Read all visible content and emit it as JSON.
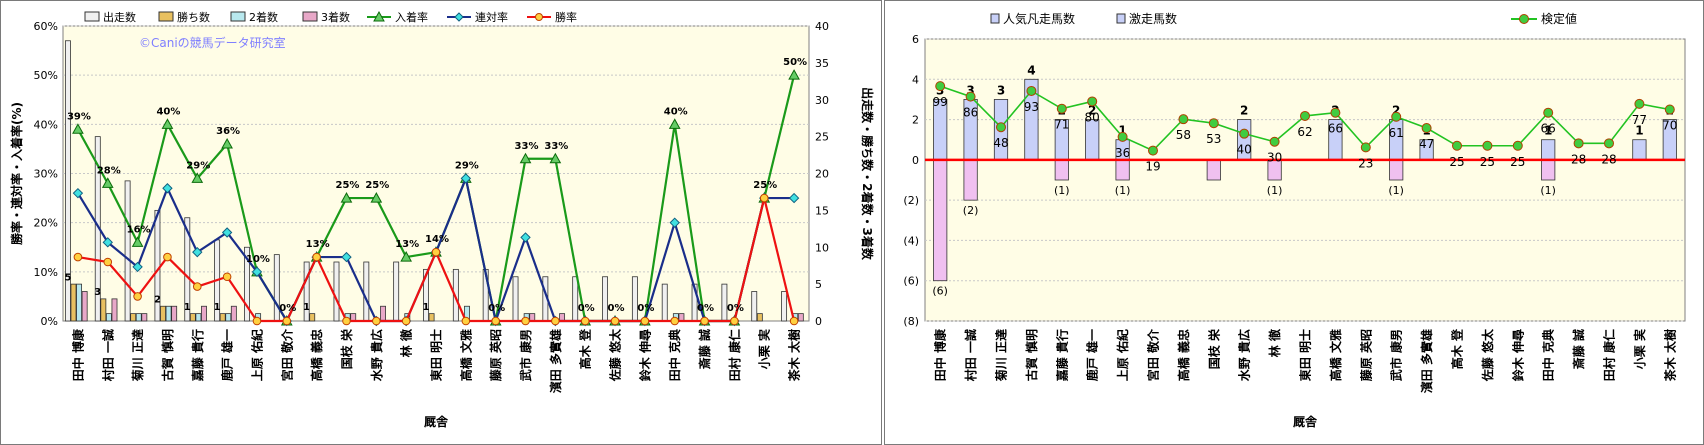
{
  "chart_data": [
    {
      "type": "bar",
      "xlabel": "厩舎",
      "ylabel": "勝率・連対率・入着率(%)",
      "y2label": "出走数・勝ち数・2着数・3着数",
      "ylim": [
        0,
        60
      ],
      "y2lim": [
        0,
        40
      ],
      "yticks": [
        "0%",
        "10%",
        "20%",
        "30%",
        "40%",
        "50%",
        "60%"
      ],
      "y2ticks": [
        "0",
        "5",
        "10",
        "15",
        "20",
        "25",
        "30",
        "35",
        "40"
      ],
      "watermark": "©Caniの競馬データ研究室",
      "legend_position": "top",
      "colors": {
        "starts": "#f0f0f0",
        "wins": "#e8c060",
        "second": "#b8e8ee",
        "third": "#e8a8c8",
        "place_rate": "#1a9a1a",
        "quinella_rate": "#1a2e8a",
        "win_rate": "#ee1111",
        "plot_bg": "#fffde6"
      },
      "categories": [
        "田中 博康",
        "村田 一誠",
        "菊川 正達",
        "古賀 慎明",
        "嘉藤 貴行",
        "鹿戸 雄一",
        "上原 佑紀",
        "宮田 敬介",
        "高橋 義忠",
        "国枝 栄",
        "水野 貴広",
        "林 徹",
        "東田 明士",
        "高橋 文雅",
        "藤原 英昭",
        "武市 康男",
        "濱田 多實雄",
        "高木 登",
        "佐藤 悠太",
        "鈴木 伸尋",
        "田中 克典",
        "斎藤 誠",
        "田村 康仁",
        "小栗 実",
        "茶木 太樹"
      ],
      "series": [
        {
          "name": "出走数",
          "kind": "bar",
          "axis": "right",
          "values": [
            38,
            25,
            19,
            15,
            14,
            11,
            10,
            9,
            8,
            8,
            8,
            8,
            7,
            7,
            7,
            6,
            6,
            6,
            6,
            6,
            5,
            5,
            5,
            4,
            4
          ]
        },
        {
          "name": "勝ち数",
          "kind": "bar",
          "axis": "right",
          "values": [
            5,
            3,
            1,
            2,
            1,
            1,
            0,
            0,
            1,
            0,
            0,
            0,
            1,
            0,
            0,
            0,
            0,
            0,
            0,
            0,
            0,
            0,
            0,
            1,
            0
          ]
        },
        {
          "name": "2着数",
          "kind": "bar",
          "axis": "right",
          "values": [
            5,
            1,
            1,
            2,
            1,
            1,
            1,
            0,
            0,
            1,
            0,
            1,
            0,
            2,
            0,
            1,
            0,
            0,
            0,
            0,
            1,
            0,
            0,
            0,
            1
          ]
        },
        {
          "name": "3着数",
          "kind": "bar",
          "axis": "right",
          "values": [
            4,
            3,
            1,
            2,
            2,
            2,
            0,
            0,
            0,
            1,
            2,
            0,
            0,
            0,
            0,
            1,
            1,
            0,
            0,
            0,
            1,
            0,
            0,
            0,
            1
          ]
        },
        {
          "name": "入着率",
          "kind": "line",
          "axis": "left",
          "values": [
            39,
            28,
            16,
            40,
            29,
            36,
            10,
            0,
            13,
            25,
            25,
            13,
            14,
            29,
            0,
            33,
            33,
            0,
            0,
            0,
            40,
            0,
            0,
            25,
            50
          ]
        },
        {
          "name": "連対率",
          "kind": "line",
          "axis": "left",
          "values": [
            26,
            16,
            11,
            27,
            14,
            18,
            10,
            0,
            13,
            13,
            0,
            0,
            14,
            29,
            0,
            17,
            0,
            0,
            0,
            0,
            20,
            0,
            0,
            25,
            25
          ]
        },
        {
          "name": "勝率",
          "kind": "line",
          "axis": "left",
          "values": [
            13,
            12,
            5,
            13,
            7,
            9,
            0,
            0,
            13,
            0,
            0,
            0,
            14,
            0,
            0,
            0,
            0,
            0,
            0,
            0,
            0,
            0,
            0,
            25,
            0
          ]
        }
      ],
      "data_labels": {
        "place_rate": [
          "39%",
          "28%",
          "16%",
          "40%",
          "29%",
          "36%",
          "10%",
          "0%",
          "13%",
          "25%",
          "25%",
          "13%",
          "14%",
          "29%",
          "0%",
          "33%",
          "33%",
          "0%",
          "0%",
          "0%",
          "40%",
          "0%",
          "0%",
          "25%",
          "50%"
        ],
        "wins": [
          "5",
          "3",
          "",
          "2",
          "1",
          "1",
          "",
          "",
          "1",
          "",
          "",
          "",
          "1",
          "",
          "",
          "",
          "",
          "",
          "",
          "",
          "",
          "",
          "",
          "",
          ""
        ]
      }
    },
    {
      "type": "bar",
      "xlabel": "厩舎",
      "ylim": [
        -8,
        6
      ],
      "yticks": [
        "(8)",
        "(6)",
        "(4)",
        "(2)",
        "0",
        "2",
        "4",
        "6"
      ],
      "legend_position": "top",
      "colors": {
        "pos_bar": "#c8d0f8",
        "neg_bar": "#f0c0f0",
        "line": "#22c322",
        "zero": "#ff0000",
        "plot_bg": "#fffde6",
        "value_label": "#228888",
        "neg_label": "#cc0000"
      },
      "categories": [
        "田中 博康",
        "村田 一誠",
        "菊川 正達",
        "古賀 慎明",
        "嘉藤 貴行",
        "鹿戸 雄一",
        "上原 佑紀",
        "宮田 敬介",
        "高橋 義忠",
        "国枝 栄",
        "水野 貴広",
        "林 徹",
        "東田 明士",
        "高橋 文雅",
        "藤原 英昭",
        "武市 康男",
        "濱田 多實雄",
        "高木 登",
        "佐藤 悠太",
        "鈴木 伸尋",
        "田中 克典",
        "斎藤 誠",
        "田村 康仁",
        "小栗 実",
        "茶木 太樹"
      ],
      "series": [
        {
          "name": "人気凡走馬数",
          "kind": "bar",
          "values": [
            -6,
            -2,
            0,
            0,
            -1,
            0,
            -1,
            0,
            0,
            -1,
            0,
            -1,
            0,
            0,
            0,
            -1,
            0,
            0,
            0,
            0,
            -1,
            0,
            0,
            0,
            0
          ]
        },
        {
          "name": "激走馬数",
          "kind": "bar",
          "values": [
            3,
            3,
            3,
            4,
            2,
            2,
            1,
            0,
            0,
            0,
            2,
            0,
            0,
            2,
            0,
            2,
            1,
            0,
            0,
            0,
            1,
            0,
            0,
            1,
            2
          ]
        },
        {
          "name": "検定値",
          "kind": "line",
          "values": [
            99,
            86,
            48,
            93,
            71,
            80,
            36,
            19,
            58,
            53,
            40,
            30,
            62,
            66,
            23,
            61,
            47,
            25,
            25,
            25,
            66,
            28,
            28,
            77,
            70
          ]
        }
      ],
      "data_labels": {
        "pos": [
          "3",
          "3",
          "3",
          "4",
          "2",
          "2",
          "1",
          "",
          "",
          "",
          "2",
          "",
          "",
          "2",
          "",
          "2",
          "1",
          "",
          "",
          "",
          "1",
          "",
          "",
          "1",
          "2"
        ],
        "neg": [
          "(6)",
          "(2)",
          "",
          "",
          "(1)",
          "",
          "(1)",
          "",
          "",
          "",
          "",
          "(1)",
          "",
          "",
          "",
          "(1)",
          "",
          "",
          "",
          "",
          "(1)",
          "",
          "",
          "",
          ""
        ]
      }
    }
  ]
}
